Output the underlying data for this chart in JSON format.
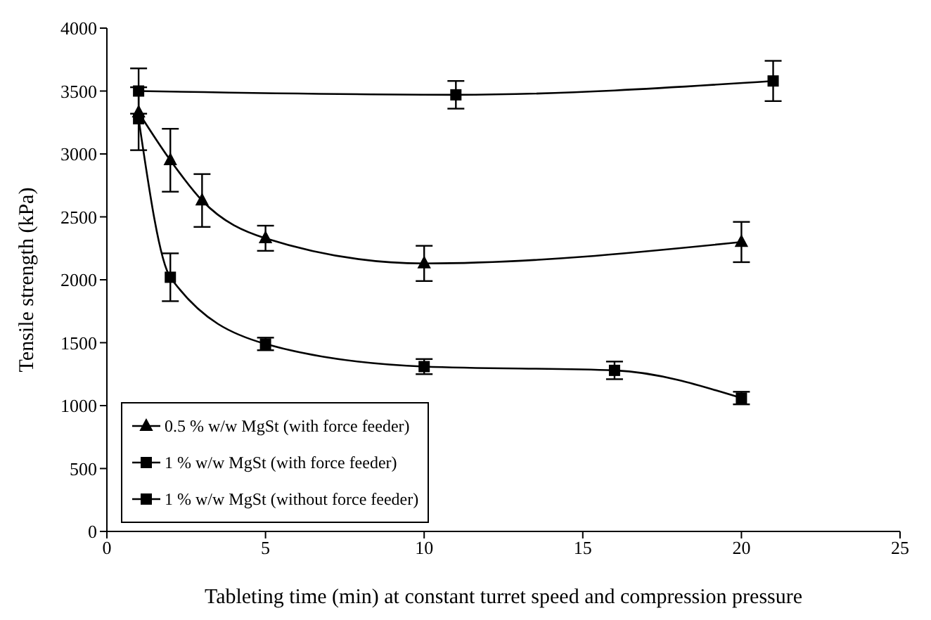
{
  "chart_data": {
    "type": "line",
    "xlabel": "Tableting time (min) at constant turret speed and compression pressure",
    "ylabel": "Tensile strength (kPa)",
    "xlim": [
      0,
      25
    ],
    "xticks": [
      0,
      5,
      10,
      15,
      20,
      25
    ],
    "ylim": [
      0,
      4000
    ],
    "yticks": [
      0,
      500,
      1000,
      1500,
      2000,
      2500,
      3000,
      3500,
      4000
    ],
    "grid": false,
    "legend": "bottom left",
    "series": [
      {
        "name": "0.5 % w/w MgSt (with force feeder)",
        "color": "#000000",
        "marker": "triangle",
        "x": [
          1,
          2,
          3,
          5,
          10,
          20
        ],
        "values": [
          3330,
          2950,
          2630,
          2330,
          2130,
          2300
        ],
        "errors": [
          null,
          250,
          210,
          100,
          140,
          160
        ]
      },
      {
        "name": "1 % w/w MgSt (with force feeder)",
        "color": "#000000",
        "marker": "square",
        "x": [
          1,
          2,
          5,
          10,
          16,
          20
        ],
        "values": [
          3280,
          2020,
          1490,
          1310,
          1280,
          1060
        ],
        "errors": [
          250,
          190,
          50,
          60,
          70,
          50
        ]
      },
      {
        "name": "1 % w/w MgSt (without force feeder)",
        "color": "#000000",
        "marker": "square",
        "x": [
          1,
          11,
          21
        ],
        "values": [
          3500,
          3470,
          3580
        ],
        "errors": [
          180,
          110,
          160
        ]
      }
    ]
  }
}
